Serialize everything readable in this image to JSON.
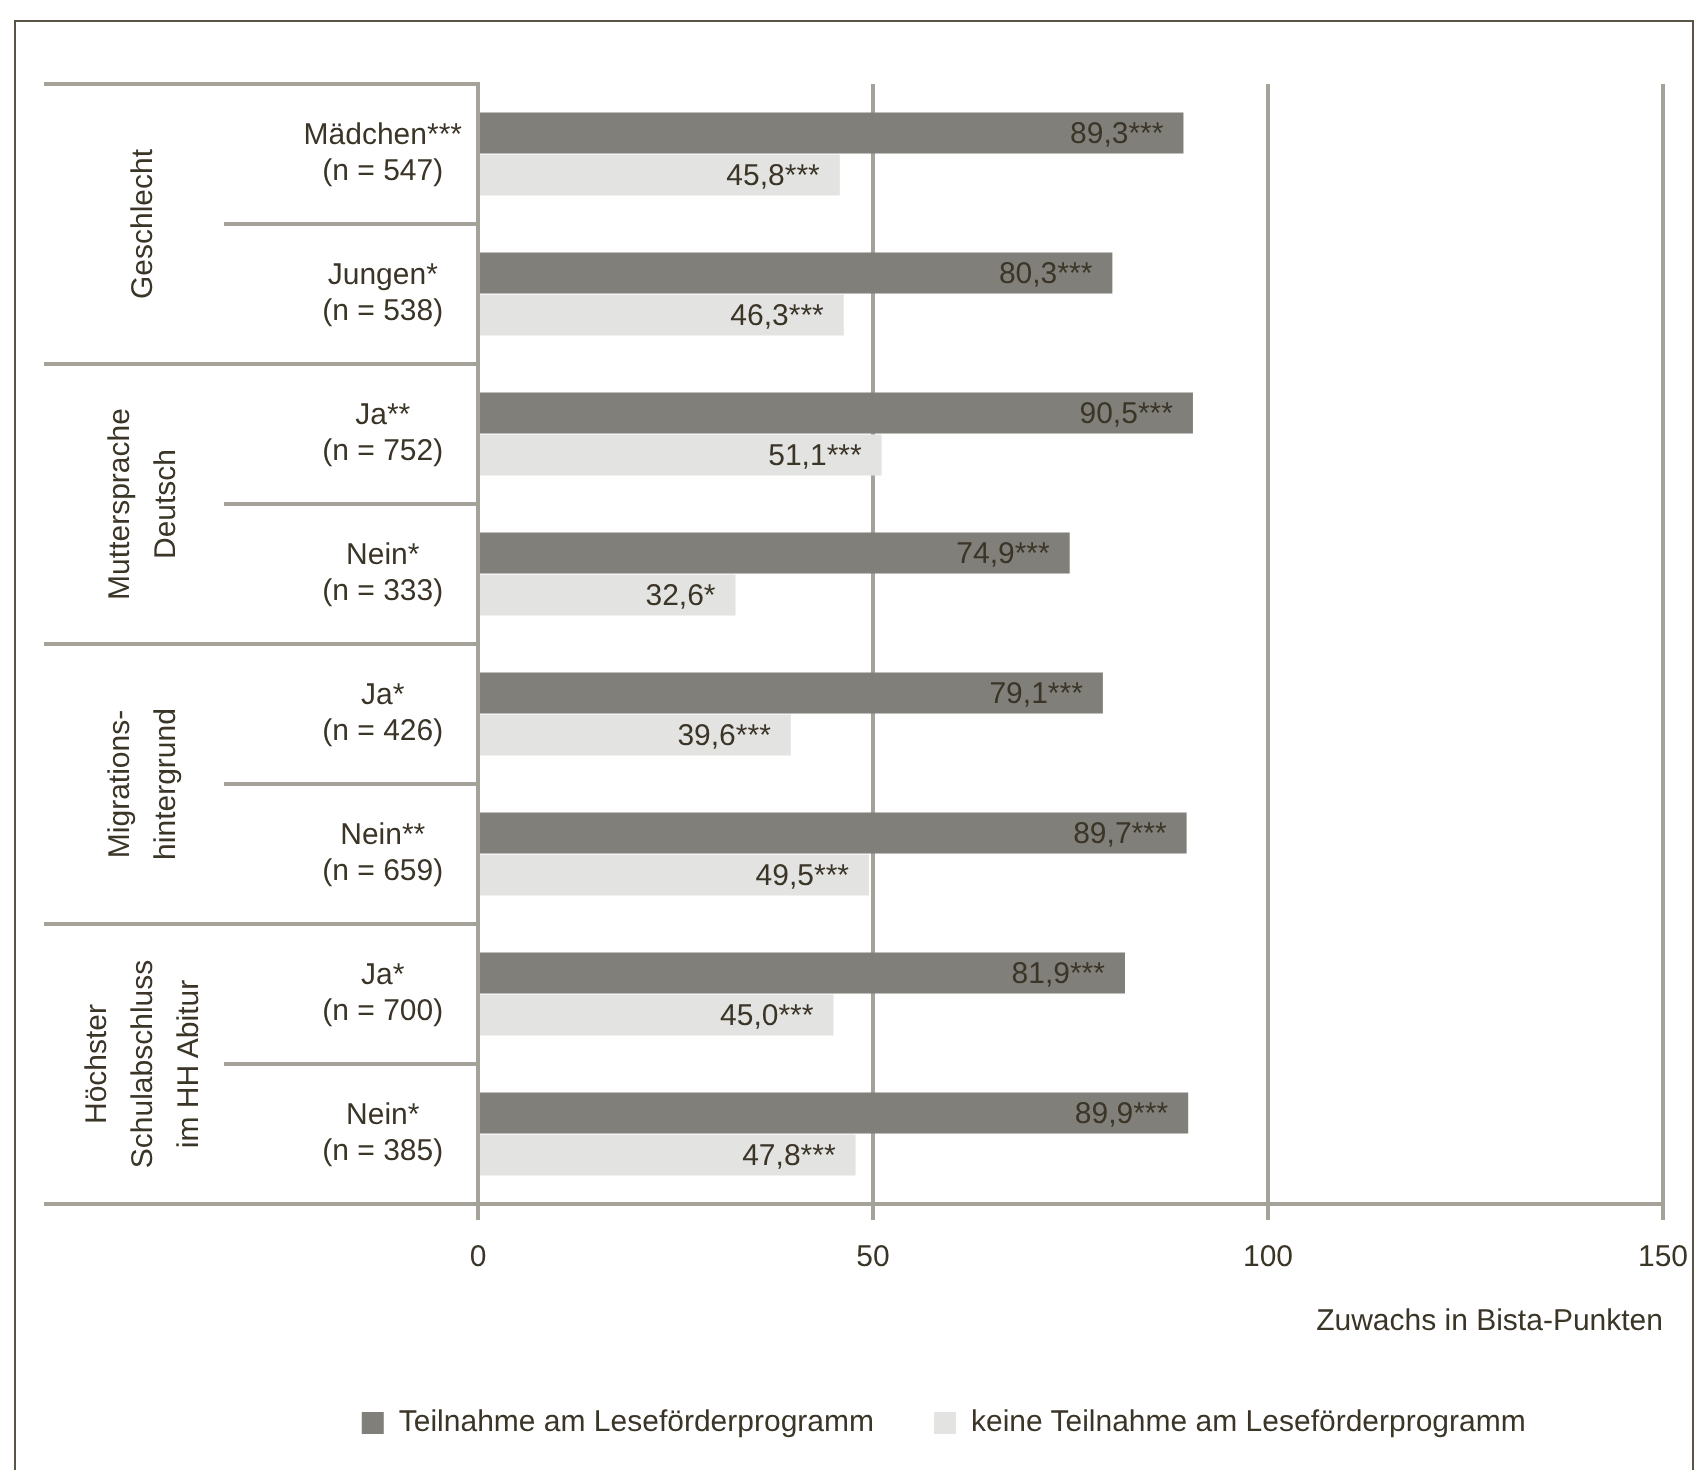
{
  "chart_data": {
    "type": "bar",
    "orientation": "horizontal",
    "xlabel": "Zuwachs in Bista-Punkten",
    "categories": [
      "Mädchen***\n(n = 547)",
      "Jungen*\n(n = 538)",
      "Ja**\n(n = 752)",
      "Nein*\n(n = 333)",
      "Ja*\n(n = 426)",
      "Nein**\n(n = 659)",
      "Ja*\n(n = 700)",
      "Nein*\n(n = 385)"
    ],
    "series": [
      {
        "name": "Teilnahme am Leseförderprogramm",
        "color": "#807f7a",
        "values": [
          89.3,
          80.3,
          90.5,
          74.9,
          79.1,
          89.7,
          81.9,
          89.9
        ],
        "value_labels": [
          "89,3***",
          "80,3***",
          "90,5***",
          "74,9***",
          "79,1***",
          "89,7***",
          "81,9***",
          "89,9***"
        ]
      },
      {
        "name": "keine Teilnahme am Leseförderprogramm",
        "color": "#e3e3e2",
        "values": [
          45.8,
          46.3,
          51.1,
          32.6,
          39.6,
          49.5,
          45.0,
          47.8
        ],
        "value_labels": [
          "45,8***",
          "46,3***",
          "51,1***",
          "32,6*",
          "39,6***",
          "49,5***",
          "45,0***",
          "47,8***"
        ]
      }
    ],
    "annotations": [
      "Geschlecht",
      "Muttersprache\nDeutsch",
      "Migrations-\nhintergrund",
      "Höchster\nSchulabschluss\nim HH Abitur"
    ],
    "xlim": [
      0,
      150
    ],
    "xticks": [
      0,
      50,
      100,
      150
    ],
    "grid": "x",
    "legend": "bottom"
  }
}
